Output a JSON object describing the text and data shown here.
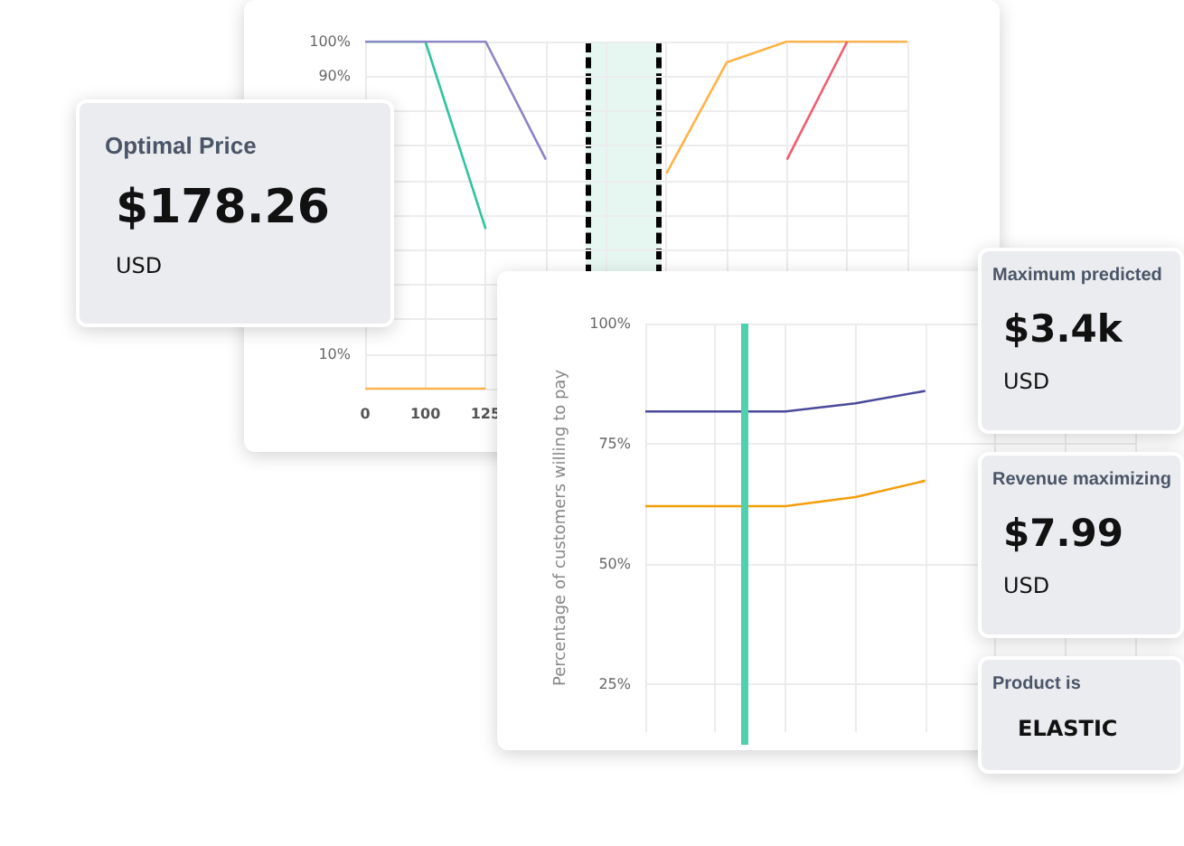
{
  "chart_data": [
    {
      "type": "line",
      "categories": [
        "0",
        "100",
        "125",
        null,
        null,
        null,
        null,
        null,
        null,
        null
      ],
      "ylim": [
        0,
        100
      ],
      "yticks": [
        {
          "value": 0,
          "label": null
        },
        {
          "value": 10,
          "label": "10%"
        },
        {
          "value": 20,
          "label": null
        },
        {
          "value": 30,
          "label": null
        },
        {
          "value": 40,
          "label": null
        },
        {
          "value": 50,
          "label": null
        },
        {
          "value": 60,
          "label": null
        },
        {
          "value": 70,
          "label": null
        },
        {
          "value": 80,
          "label": null
        },
        {
          "value": 90,
          "label": "90%"
        },
        {
          "value": 100,
          "label": "100%"
        }
      ],
      "grid": true,
      "series": [
        {
          "color": "#2ec4a0",
          "values": [
            100,
            100,
            46,
            null,
            null,
            null,
            null,
            null,
            null,
            null
          ]
        },
        {
          "color": "#8b85c8",
          "values": [
            100,
            100,
            100,
            66,
            null,
            null,
            null,
            null,
            null,
            null
          ]
        },
        {
          "color": "#ffb347",
          "values": [
            0,
            0,
            0,
            null,
            null,
            62,
            94,
            100,
            100,
            100
          ]
        },
        {
          "color": "#f25c6e",
          "values": [
            null,
            null,
            null,
            null,
            null,
            null,
            null,
            66,
            100,
            null
          ]
        }
      ]
    },
    {
      "type": "other",
      "title": "Optimal Price",
      "annotations": [
        "$178.26",
        "USD"
      ]
    },
    {
      "type": "line",
      "ylabel": "Percentage of customers willing to pay",
      "categories": [
        null,
        null,
        null,
        null,
        null,
        null,
        null,
        null
      ],
      "ylim": [
        15,
        100
      ],
      "yticks": [
        {
          "value": 25,
          "label": "25%"
        },
        {
          "value": 50,
          "label": "50%"
        },
        {
          "value": 75,
          "label": "75%"
        },
        {
          "value": 100,
          "label": "100%"
        }
      ],
      "grid": true,
      "series": [
        {
          "color": "#4b4a9c",
          "values": [
            81.7,
            81.7,
            81.7,
            83.4,
            86,
            null,
            null,
            null
          ]
        },
        {
          "color": "#f59e0b",
          "values": [
            62,
            62,
            62,
            63.9,
            67.3,
            null,
            null,
            null
          ]
        }
      ]
    },
    {
      "type": "other",
      "title": "Maximum predicted",
      "annotations": [
        "$3.4k",
        "USD"
      ]
    },
    {
      "type": "other",
      "title": "Revenue maximizing",
      "annotations": [
        "$7.99",
        "USD"
      ]
    },
    {
      "type": "other",
      "title": "Product is",
      "annotations": [
        "ELASTIC"
      ]
    }
  ]
}
